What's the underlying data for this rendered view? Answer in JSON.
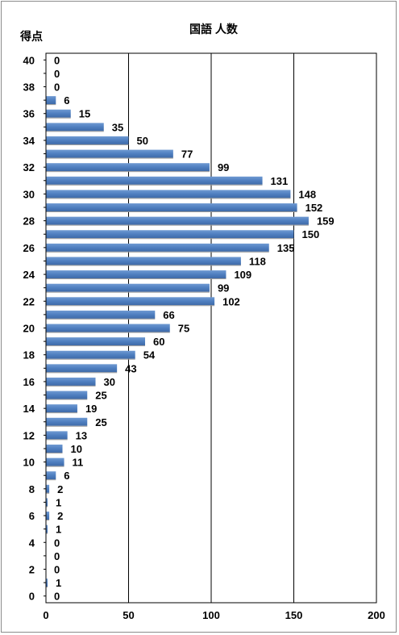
{
  "chart_data": {
    "type": "bar",
    "orientation": "horizontal",
    "title": "国語 人数",
    "ylabel": "得点",
    "xlabel": "",
    "xlim": [
      0,
      200
    ],
    "x_ticks": [
      0,
      50,
      100,
      150,
      200
    ],
    "y_ticks": [
      0,
      2,
      4,
      6,
      8,
      10,
      12,
      14,
      16,
      18,
      20,
      22,
      24,
      26,
      28,
      30,
      32,
      34,
      36,
      38,
      40
    ],
    "grid": "vertical",
    "bar_color": "#4F7FC0",
    "categories": [
      40,
      39,
      38,
      37,
      36,
      35,
      34,
      33,
      32,
      31,
      30,
      29,
      28,
      27,
      26,
      25,
      24,
      23,
      22,
      21,
      20,
      19,
      18,
      17,
      16,
      15,
      14,
      13,
      12,
      11,
      10,
      9,
      8,
      7,
      6,
      5,
      4,
      3,
      2,
      1,
      0
    ],
    "values": [
      0,
      0,
      0,
      6,
      15,
      35,
      50,
      77,
      99,
      131,
      148,
      152,
      159,
      150,
      135,
      118,
      109,
      99,
      102,
      66,
      75,
      60,
      54,
      43,
      30,
      25,
      19,
      25,
      13,
      10,
      11,
      6,
      2,
      1,
      2,
      1,
      0,
      0,
      0,
      1,
      0
    ]
  }
}
